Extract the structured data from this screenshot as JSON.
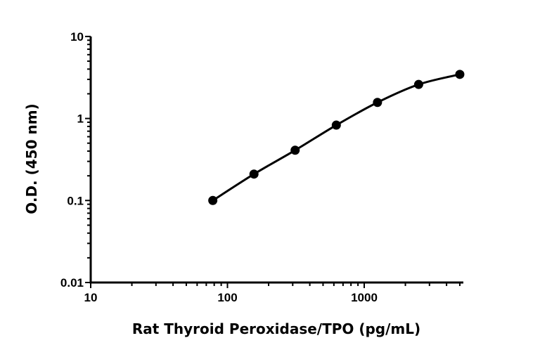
{
  "chart_data": {
    "type": "scatter",
    "title": "",
    "xlabel": "Rat Thyroid Peroxidase/TPO (pg/mL)",
    "ylabel": "O.D. (450 nm)",
    "x_scale": "log",
    "y_scale": "log",
    "xlim": [
      10,
      5000
    ],
    "ylim": [
      0.01,
      10
    ],
    "x_ticks": [
      "10",
      "100",
      "1000"
    ],
    "y_ticks": [
      "0.01",
      "0.1",
      "1",
      "10"
    ],
    "grid": false,
    "series": [
      {
        "x": [
          78.125,
          156.25,
          312.5,
          625,
          1250,
          2500,
          5000
        ],
        "y": [
          0.1,
          0.21,
          0.41,
          0.83,
          1.57,
          2.6,
          3.45
        ],
        "marker": "filled-circle",
        "fit_line": true,
        "color": "#000000"
      }
    ]
  }
}
